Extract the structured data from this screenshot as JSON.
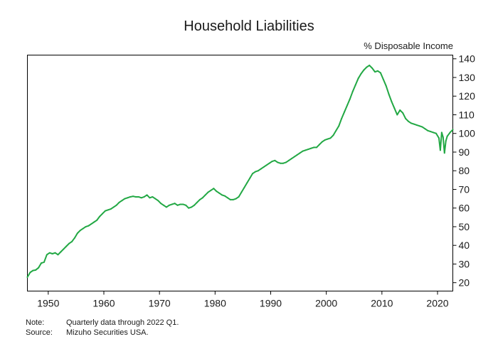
{
  "chart_data": {
    "type": "line",
    "title": "Household Liabilities",
    "ylabel": "% Disposable Income",
    "xlabel": "",
    "xlim": [
      1946.25,
      2022.75
    ],
    "ylim": [
      15.5,
      142
    ],
    "x_ticks": [
      1950,
      1960,
      1970,
      1980,
      1990,
      2000,
      2010,
      2020
    ],
    "y_ticks": [
      20,
      30,
      40,
      50,
      60,
      70,
      80,
      90,
      100,
      110,
      120,
      130,
      140
    ],
    "grid": false,
    "legend": "none",
    "series": [
      {
        "color": "#22a844",
        "points": [
          [
            1946.25,
            23.0
          ],
          [
            1946.75,
            25.5
          ],
          [
            1947.25,
            26.5
          ],
          [
            1947.75,
            26.8
          ],
          [
            1948.25,
            28.0
          ],
          [
            1948.75,
            30.5
          ],
          [
            1949.25,
            31.0
          ],
          [
            1949.75,
            35.0
          ],
          [
            1950.25,
            36.0
          ],
          [
            1950.75,
            35.5
          ],
          [
            1951.25,
            36.0
          ],
          [
            1951.75,
            35.0
          ],
          [
            1952.25,
            36.5
          ],
          [
            1952.75,
            38.0
          ],
          [
            1953.25,
            39.5
          ],
          [
            1953.75,
            41.0
          ],
          [
            1954.25,
            42.0
          ],
          [
            1954.75,
            44.0
          ],
          [
            1955.25,
            46.5
          ],
          [
            1955.75,
            48.0
          ],
          [
            1956.25,
            49.0
          ],
          [
            1956.75,
            50.0
          ],
          [
            1957.25,
            50.5
          ],
          [
            1957.75,
            51.5
          ],
          [
            1958.25,
            52.5
          ],
          [
            1958.75,
            53.5
          ],
          [
            1959.25,
            55.5
          ],
          [
            1959.75,
            57.0
          ],
          [
            1960.25,
            58.5
          ],
          [
            1960.75,
            59.0
          ],
          [
            1961.25,
            59.5
          ],
          [
            1961.75,
            60.5
          ],
          [
            1962.25,
            61.5
          ],
          [
            1962.75,
            63.0
          ],
          [
            1963.25,
            64.0
          ],
          [
            1963.75,
            65.0
          ],
          [
            1964.25,
            65.5
          ],
          [
            1964.75,
            66.0
          ],
          [
            1965.25,
            66.3
          ],
          [
            1965.75,
            66.0
          ],
          [
            1966.25,
            66.0
          ],
          [
            1966.75,
            65.5
          ],
          [
            1967.25,
            66.0
          ],
          [
            1967.75,
            67.0
          ],
          [
            1968.25,
            65.5
          ],
          [
            1968.75,
            66.0
          ],
          [
            1969.25,
            65.0
          ],
          [
            1969.75,
            64.0
          ],
          [
            1970.25,
            62.5
          ],
          [
            1970.75,
            61.5
          ],
          [
            1971.25,
            60.5
          ],
          [
            1971.75,
            61.5
          ],
          [
            1972.25,
            62.0
          ],
          [
            1972.75,
            62.5
          ],
          [
            1973.25,
            61.5
          ],
          [
            1973.75,
            62.0
          ],
          [
            1974.25,
            62.0
          ],
          [
            1974.75,
            61.5
          ],
          [
            1975.25,
            60.0
          ],
          [
            1975.75,
            60.5
          ],
          [
            1976.25,
            61.5
          ],
          [
            1976.75,
            63.0
          ],
          [
            1977.25,
            64.5
          ],
          [
            1977.75,
            65.5
          ],
          [
            1978.25,
            67.0
          ],
          [
            1978.75,
            68.5
          ],
          [
            1979.25,
            69.5
          ],
          [
            1979.75,
            70.5
          ],
          [
            1980.25,
            69.0
          ],
          [
            1980.75,
            68.0
          ],
          [
            1981.25,
            67.0
          ],
          [
            1981.75,
            66.5
          ],
          [
            1982.25,
            65.5
          ],
          [
            1982.75,
            64.5
          ],
          [
            1983.25,
            64.5
          ],
          [
            1983.75,
            65.0
          ],
          [
            1984.25,
            66.0
          ],
          [
            1984.75,
            68.5
          ],
          [
            1985.25,
            71.0
          ],
          [
            1985.75,
            73.5
          ],
          [
            1986.25,
            76.0
          ],
          [
            1986.75,
            78.5
          ],
          [
            1987.25,
            79.5
          ],
          [
            1987.75,
            80.0
          ],
          [
            1988.25,
            81.0
          ],
          [
            1988.75,
            82.0
          ],
          [
            1989.25,
            83.0
          ],
          [
            1989.75,
            84.0
          ],
          [
            1990.25,
            85.0
          ],
          [
            1990.75,
            85.5
          ],
          [
            1991.25,
            84.5
          ],
          [
            1991.75,
            84.0
          ],
          [
            1992.25,
            84.0
          ],
          [
            1992.75,
            84.5
          ],
          [
            1993.25,
            85.5
          ],
          [
            1993.75,
            86.5
          ],
          [
            1994.25,
            87.5
          ],
          [
            1994.75,
            88.5
          ],
          [
            1995.25,
            89.5
          ],
          [
            1995.75,
            90.5
          ],
          [
            1996.25,
            91.0
          ],
          [
            1996.75,
            91.5
          ],
          [
            1997.25,
            92.0
          ],
          [
            1997.75,
            92.5
          ],
          [
            1998.25,
            92.5
          ],
          [
            1998.75,
            94.0
          ],
          [
            1999.25,
            95.5
          ],
          [
            1999.75,
            96.5
          ],
          [
            2000.25,
            97.0
          ],
          [
            2000.75,
            97.5
          ],
          [
            2001.25,
            99.0
          ],
          [
            2001.75,
            101.5
          ],
          [
            2002.25,
            104.0
          ],
          [
            2002.75,
            108.0
          ],
          [
            2003.25,
            111.5
          ],
          [
            2003.75,
            115.0
          ],
          [
            2004.25,
            118.5
          ],
          [
            2004.75,
            122.5
          ],
          [
            2005.25,
            126.0
          ],
          [
            2005.75,
            129.5
          ],
          [
            2006.25,
            132.0
          ],
          [
            2006.75,
            134.0
          ],
          [
            2007.25,
            135.5
          ],
          [
            2007.75,
            136.5
          ],
          [
            2008.25,
            135.0
          ],
          [
            2008.75,
            133.0
          ],
          [
            2009.25,
            133.5
          ],
          [
            2009.75,
            132.5
          ],
          [
            2010.25,
            129.0
          ],
          [
            2010.75,
            125.5
          ],
          [
            2011.25,
            121.0
          ],
          [
            2011.75,
            117.0
          ],
          [
            2012.25,
            113.5
          ],
          [
            2012.75,
            110.0
          ],
          [
            2013.25,
            112.5
          ],
          [
            2013.75,
            111.0
          ],
          [
            2014.25,
            108.0
          ],
          [
            2014.75,
            106.5
          ],
          [
            2015.25,
            105.5
          ],
          [
            2015.75,
            105.0
          ],
          [
            2016.25,
            104.5
          ],
          [
            2016.75,
            104.0
          ],
          [
            2017.25,
            103.5
          ],
          [
            2017.75,
            102.5
          ],
          [
            2018.25,
            101.5
          ],
          [
            2018.75,
            101.0
          ],
          [
            2019.25,
            100.5
          ],
          [
            2019.75,
            100.0
          ],
          [
            2020.25,
            97.5
          ],
          [
            2020.5,
            91.0
          ],
          [
            2020.75,
            100.5
          ],
          [
            2021.0,
            98.0
          ],
          [
            2021.25,
            89.5
          ],
          [
            2021.5,
            96.0
          ],
          [
            2021.75,
            98.5
          ],
          [
            2022.25,
            100.5
          ],
          [
            2022.75,
            102.0
          ]
        ]
      }
    ],
    "notes": [
      {
        "label": "Note:",
        "text": "Quarterly data through 2022 Q1."
      },
      {
        "label": "Source:",
        "text": "Mizuho Securities USA."
      }
    ]
  }
}
